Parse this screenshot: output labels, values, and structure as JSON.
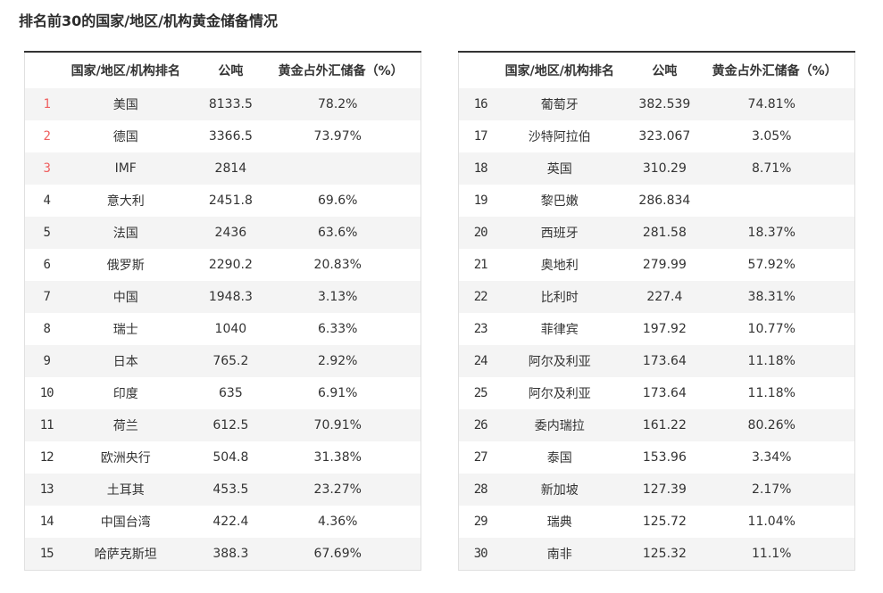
{
  "page": {
    "title": "排名前30的国家/地区/机构黄金储备情况"
  },
  "colors": {
    "rank_top3": "#ef5f5f",
    "rank_default": "#4f4f4f",
    "alt_row_bg": "#f4f4f4",
    "table_top_border": "#333333",
    "table_edge_border": "#e0e0e0",
    "text": "#333333"
  },
  "tables": [
    {
      "name": "ranks-1-15",
      "header": {
        "rank_name": "国家/地区/机构排名",
        "tons": "公吨",
        "pct": "黄金占外汇储备（%）"
      },
      "row_range": "0-15"
    },
    {
      "name": "ranks-16-30",
      "header": {
        "rank_name": "国家/地区/机构排名",
        "tons": "公吨",
        "pct": "黄金占外汇储备（%）"
      },
      "row_range": "15-30"
    }
  ],
  "chart_data": {
    "type": "table",
    "title": "排名前30的国家/地区/机构黄金储备情况",
    "columns": [
      "排名",
      "国家/地区/机构",
      "公吨",
      "黄金占外汇储备（%）"
    ],
    "layout_hint": "two side-by-side tables, ranks 1-15 left and 16-30 right; ranks 1-3 highlighted red; odd rows shaded",
    "rows": [
      [
        "1",
        "美国",
        "8133.5",
        "78.2%"
      ],
      [
        "2",
        "德国",
        "3366.5",
        "73.97%"
      ],
      [
        "3",
        "IMF",
        "2814",
        ""
      ],
      [
        "4",
        "意大利",
        "2451.8",
        "69.6%"
      ],
      [
        "5",
        "法国",
        "2436",
        "63.6%"
      ],
      [
        "6",
        "俄罗斯",
        "2290.2",
        "20.83%"
      ],
      [
        "7",
        "中国",
        "1948.3",
        "3.13%"
      ],
      [
        "8",
        "瑞士",
        "1040",
        "6.33%"
      ],
      [
        "9",
        "日本",
        "765.2",
        "2.92%"
      ],
      [
        "10",
        "印度",
        "635",
        "6.91%"
      ],
      [
        "11",
        "荷兰",
        "612.5",
        "70.91%"
      ],
      [
        "12",
        "欧洲央行",
        "504.8",
        "31.38%"
      ],
      [
        "13",
        "土耳其",
        "453.5",
        "23.27%"
      ],
      [
        "14",
        "中国台湾",
        "422.4",
        "4.36%"
      ],
      [
        "15",
        "哈萨克斯坦",
        "388.3",
        "67.69%"
      ],
      [
        "16",
        "葡萄牙",
        "382.539",
        "74.81%"
      ],
      [
        "17",
        "沙特阿拉伯",
        "323.067",
        "3.05%"
      ],
      [
        "18",
        "英国",
        "310.29",
        "8.71%"
      ],
      [
        "19",
        "黎巴嫩",
        "286.834",
        ""
      ],
      [
        "20",
        "西班牙",
        "281.58",
        "18.37%"
      ],
      [
        "21",
        "奥地利",
        "279.99",
        "57.92%"
      ],
      [
        "22",
        "比利时",
        "227.4",
        "38.31%"
      ],
      [
        "23",
        "菲律宾",
        "197.92",
        "10.77%"
      ],
      [
        "24",
        "阿尔及利亚",
        "173.64",
        "11.18%"
      ],
      [
        "25",
        "阿尔及利亚",
        "173.64",
        "11.18%"
      ],
      [
        "26",
        "委内瑞拉",
        "161.22",
        "80.26%"
      ],
      [
        "27",
        "泰国",
        "153.96",
        "3.34%"
      ],
      [
        "28",
        "新加坡",
        "127.39",
        "2.17%"
      ],
      [
        "29",
        "瑞典",
        "125.72",
        "11.04%"
      ],
      [
        "30",
        "南非",
        "125.32",
        "11.1%"
      ]
    ]
  }
}
